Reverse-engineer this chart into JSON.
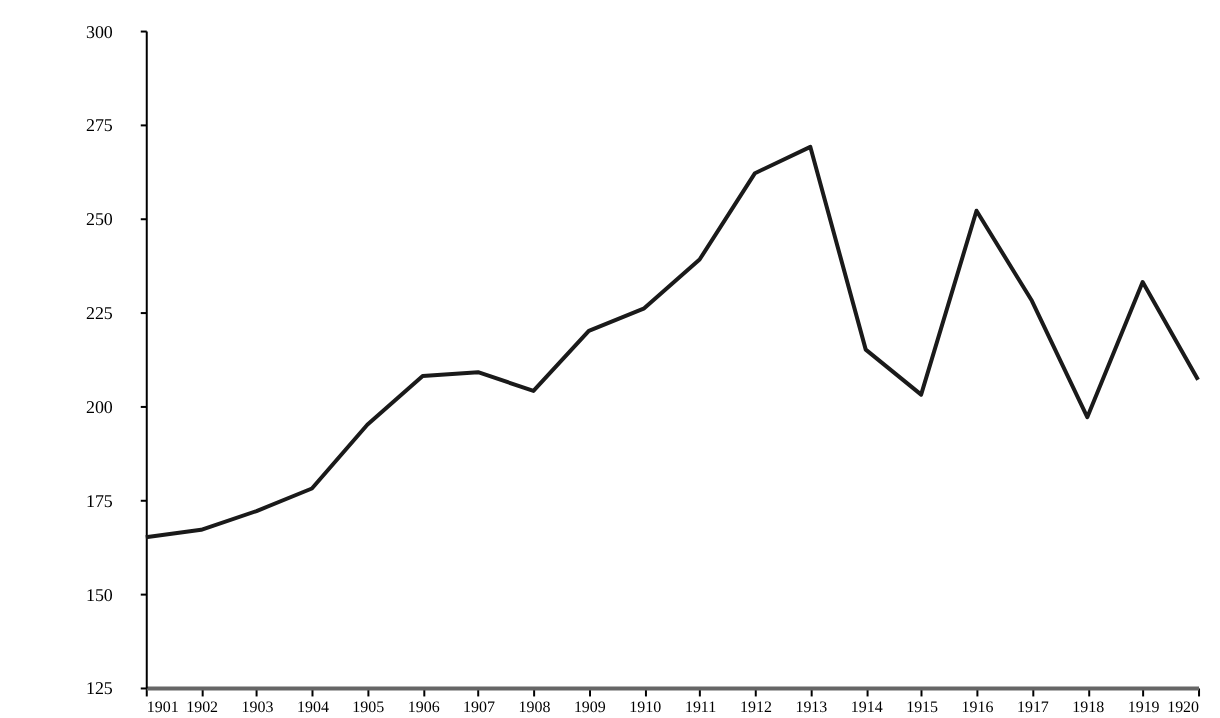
{
  "chart_data": {
    "type": "line",
    "x": [
      1901,
      1902,
      1903,
      1904,
      1905,
      1906,
      1907,
      1908,
      1909,
      1910,
      1911,
      1912,
      1913,
      1914,
      1915,
      1916,
      1917,
      1918,
      1919,
      1920
    ],
    "series": [
      {
        "color": "#1a1a1a",
        "values": [
          165,
          167,
          172,
          178,
          195,
          208,
          209,
          204,
          220,
          226,
          239,
          262,
          269,
          215,
          203,
          252,
          228,
          197,
          233,
          207
        ]
      }
    ],
    "xlim": [
      1901,
      1920
    ],
    "xticks": [
      1901,
      1902,
      1903,
      1904,
      1905,
      1906,
      1907,
      1908,
      1909,
      1910,
      1911,
      1912,
      1913,
      1914,
      1915,
      1916,
      1917,
      1918,
      1919,
      1920
    ],
    "ylim": [
      125,
      300
    ],
    "yticks": [
      125,
      150,
      175,
      200,
      225,
      250,
      275,
      300
    ],
    "grid": false,
    "marker": "none",
    "line_style": "solid"
  }
}
